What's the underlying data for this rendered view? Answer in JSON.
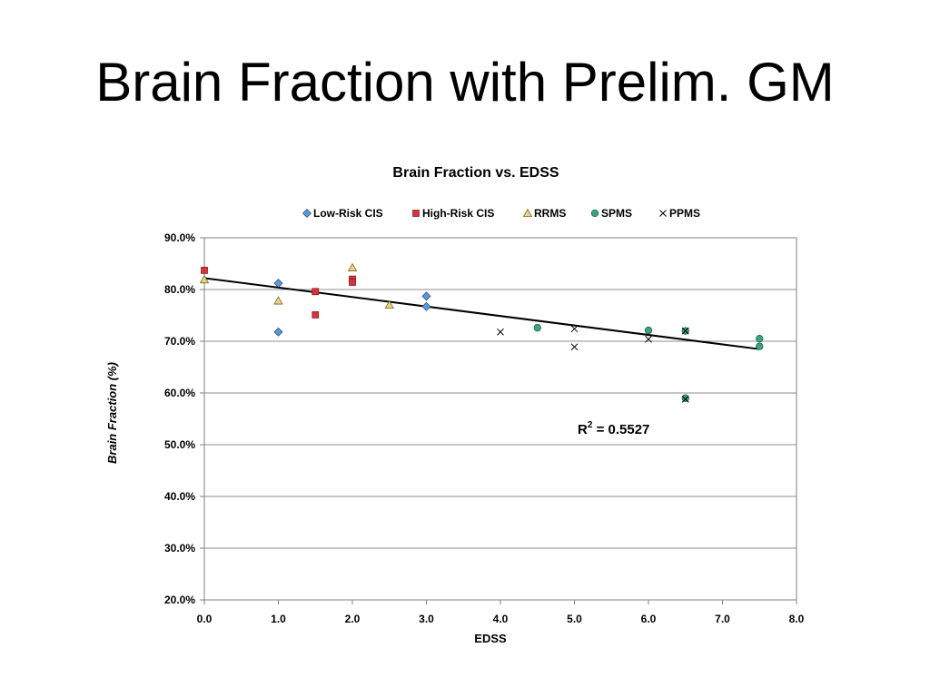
{
  "slide": {
    "title": "Brain Fraction with Prelim. GM"
  },
  "chart_data": {
    "type": "scatter",
    "title": "Brain Fraction vs. EDSS",
    "xlabel": "EDSS",
    "ylabel": "Brain Fraction (%)",
    "xlim": [
      0,
      8
    ],
    "ylim": [
      20,
      90
    ],
    "xticks": [
      0,
      1,
      2,
      3,
      4,
      5,
      6,
      7,
      8
    ],
    "yticks": [
      20,
      30,
      40,
      50,
      60,
      70,
      80,
      90
    ],
    "xtick_labels": [
      "0.0",
      "1.0",
      "2.0",
      "3.0",
      "4.0",
      "5.0",
      "6.0",
      "7.0",
      "8.0"
    ],
    "ytick_labels": [
      "20.0%",
      "30.0%",
      "40.0%",
      "50.0%",
      "60.0%",
      "70.0%",
      "80.0%",
      "90.0%"
    ],
    "grid": "horizontal",
    "legend_position": "top",
    "series": [
      {
        "name": "Low-Risk CIS",
        "marker": "diamond",
        "color": "#5b9bd5",
        "points": [
          [
            1.0,
            81.2
          ],
          [
            1.0,
            71.8
          ],
          [
            3.0,
            78.7
          ],
          [
            3.0,
            76.7
          ]
        ]
      },
      {
        "name": "High-Risk CIS",
        "marker": "square",
        "color": "#d9323a",
        "points": [
          [
            0.0,
            83.7
          ],
          [
            1.5,
            79.6
          ],
          [
            1.5,
            75.1
          ],
          [
            2.0,
            82.0
          ],
          [
            2.0,
            81.4
          ]
        ]
      },
      {
        "name": "RRMS",
        "marker": "triangle",
        "color": "#e8d48b",
        "points": [
          [
            0.0,
            81.9
          ],
          [
            1.0,
            77.8
          ],
          [
            2.0,
            84.2
          ],
          [
            2.5,
            77.0
          ]
        ]
      },
      {
        "name": "SPMS",
        "marker": "circle",
        "color": "#3aa57a",
        "points": [
          [
            4.5,
            72.6
          ],
          [
            6.0,
            72.1
          ],
          [
            6.5,
            72.0
          ],
          [
            6.5,
            59.0
          ],
          [
            7.5,
            70.5
          ],
          [
            7.5,
            69.0
          ]
        ]
      },
      {
        "name": "PPMS",
        "marker": "x",
        "color": "#000000",
        "points": [
          [
            4.0,
            71.8
          ],
          [
            5.0,
            72.4
          ],
          [
            5.0,
            68.9
          ],
          [
            6.0,
            70.4
          ],
          [
            6.5,
            72.0
          ],
          [
            6.5,
            58.8
          ]
        ]
      }
    ],
    "trendline": {
      "type": "linear",
      "intercept": 82.2,
      "slope": -1.83,
      "x_range": [
        0,
        7.5
      ]
    },
    "annotation": {
      "text_base": "R",
      "text_sup": "2",
      "text_rest": " = 0.5527"
    }
  }
}
